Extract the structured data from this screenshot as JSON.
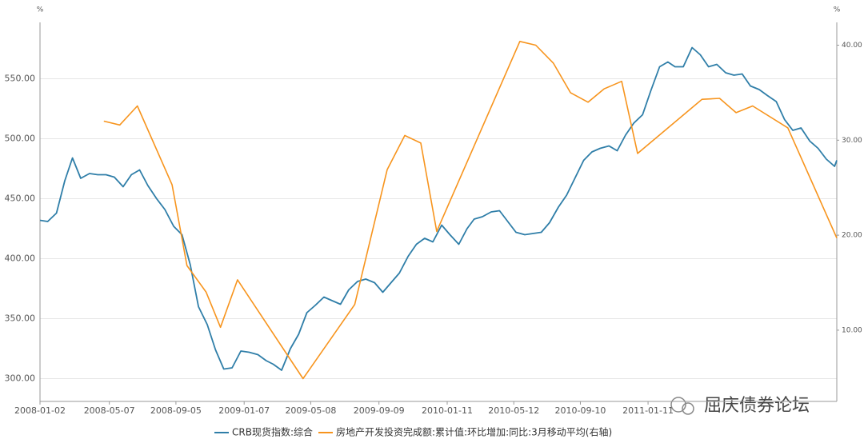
{
  "chart_data": {
    "type": "line",
    "y_unit": "%",
    "y2_unit": "%",
    "xlim": [
      "2008-01-02",
      "2011-12-20"
    ],
    "xticks": [
      "2008-01-02",
      "2008-05-07",
      "2008-09-05",
      "2009-01-07",
      "2009-05-08",
      "2009-09-09",
      "2010-01-11",
      "2010-05-12",
      "2010-09-10",
      "2011-01-11"
    ],
    "ylim": [
      281,
      597
    ],
    "yticks": [
      {
        "value": 300,
        "label": "300.00"
      },
      {
        "value": 350,
        "label": "350.00"
      },
      {
        "value": 400,
        "label": "400.00"
      },
      {
        "value": 450,
        "label": "450.00"
      },
      {
        "value": 500,
        "label": "500.00"
      },
      {
        "value": 550,
        "label": "550.00"
      }
    ],
    "y2lim": [
      2.5,
      42.4
    ],
    "y2ticks": [
      {
        "value": 10,
        "label": "10.00"
      },
      {
        "value": 20,
        "label": "20.00"
      },
      {
        "value": 30,
        "label": "30.00"
      },
      {
        "value": 40,
        "label": "40.00"
      }
    ],
    "grid": true,
    "legend": "bottom",
    "watermark": "屈庆债券论坛",
    "series": [
      {
        "name": "CRB现货指数:综合",
        "color": "#2f7ea8",
        "axis": "y",
        "x": [
          "2008-01-02",
          "2008-01-16",
          "2008-02-01",
          "2008-02-16",
          "2008-03-01",
          "2008-03-16",
          "2008-04-01",
          "2008-04-16",
          "2008-05-01",
          "2008-05-16",
          "2008-06-01",
          "2008-06-16",
          "2008-07-01",
          "2008-07-16",
          "2008-08-01",
          "2008-08-16",
          "2008-09-01",
          "2008-09-16",
          "2008-10-01",
          "2008-10-16",
          "2008-11-01",
          "2008-11-16",
          "2008-12-01",
          "2008-12-16",
          "2009-01-01",
          "2009-01-16",
          "2009-02-01",
          "2009-02-16",
          "2009-03-01",
          "2009-03-16",
          "2009-04-01",
          "2009-04-16",
          "2009-05-01",
          "2009-05-16",
          "2009-06-01",
          "2009-06-16",
          "2009-07-01",
          "2009-07-16",
          "2009-08-01",
          "2009-08-16",
          "2009-09-01",
          "2009-09-16",
          "2009-10-01",
          "2009-10-16",
          "2009-11-01",
          "2009-11-16",
          "2009-12-01",
          "2009-12-16",
          "2010-01-01",
          "2010-01-16",
          "2010-02-01",
          "2010-02-16",
          "2010-03-01",
          "2010-03-16",
          "2010-04-01",
          "2010-04-16",
          "2010-05-01",
          "2010-05-16",
          "2010-06-01",
          "2010-06-16",
          "2010-07-01",
          "2010-07-16",
          "2010-08-01",
          "2010-08-16",
          "2010-09-01",
          "2010-09-16",
          "2010-10-01",
          "2010-10-16",
          "2010-11-01",
          "2010-11-16",
          "2010-12-01",
          "2010-12-16",
          "2011-01-01",
          "2011-01-16",
          "2011-02-01",
          "2011-02-16",
          "2011-03-01",
          "2011-03-16",
          "2011-04-01",
          "2011-04-16",
          "2011-05-01",
          "2011-05-16",
          "2011-06-01",
          "2011-06-16",
          "2011-07-01",
          "2011-07-16",
          "2011-08-01",
          "2011-08-16",
          "2011-09-01",
          "2011-09-16",
          "2011-10-01",
          "2011-10-16",
          "2011-11-01",
          "2011-11-16",
          "2011-12-01",
          "2011-12-16",
          "2011-12-20"
        ],
        "values": [
          432,
          431,
          438,
          465,
          484,
          467,
          471,
          470,
          470,
          468,
          460,
          470,
          474,
          461,
          450,
          441,
          427,
          420,
          395,
          360,
          345,
          324,
          308,
          309,
          323,
          322,
          320,
          315,
          312,
          307,
          325,
          337,
          355,
          361,
          368,
          365,
          362,
          374,
          381,
          383,
          380,
          372,
          380,
          388,
          402,
          412,
          417,
          414,
          428,
          420,
          412,
          425,
          433,
          435,
          439,
          440,
          431,
          422,
          420,
          421,
          422,
          430,
          443,
          453,
          468,
          482,
          489,
          492,
          494,
          490,
          503,
          513,
          520,
          540,
          560,
          564,
          560,
          560,
          576,
          570,
          560,
          562,
          555,
          553,
          554,
          544,
          541,
          536,
          531,
          516,
          507,
          509,
          498,
          492,
          483,
          477,
          482
        ]
      },
      {
        "name": "房地产开发投资完成额:累计值:环比增加:同比:3月移动平均(右轴)",
        "color": "#f7941d",
        "axis": "y2",
        "x": [
          "2008-04-27",
          "2008-05-26",
          "2008-06-27",
          "2008-08-29",
          "2008-09-25",
          "2008-10-30",
          "2008-11-25",
          "2008-12-26",
          "2009-04-24",
          "2009-07-27",
          "2009-09-24",
          "2009-10-26",
          "2009-11-24",
          "2009-12-23",
          "2010-05-23",
          "2010-06-21",
          "2010-07-23",
          "2010-08-23",
          "2010-09-24",
          "2010-10-23",
          "2010-11-24",
          "2010-12-23",
          "2011-04-19",
          "2011-05-21",
          "2011-06-20",
          "2011-07-20",
          "2011-09-22",
          "2011-12-20"
        ],
        "values": [
          32.0,
          31.6,
          33.6,
          25.3,
          16.8,
          14.0,
          10.3,
          15.3,
          4.9,
          12.7,
          26.9,
          30.5,
          29.7,
          20.4,
          40.4,
          40.0,
          38.1,
          35.0,
          34.0,
          35.4,
          36.2,
          28.6,
          34.3,
          34.4,
          32.9,
          33.6,
          31.3,
          19.7
        ]
      }
    ]
  }
}
